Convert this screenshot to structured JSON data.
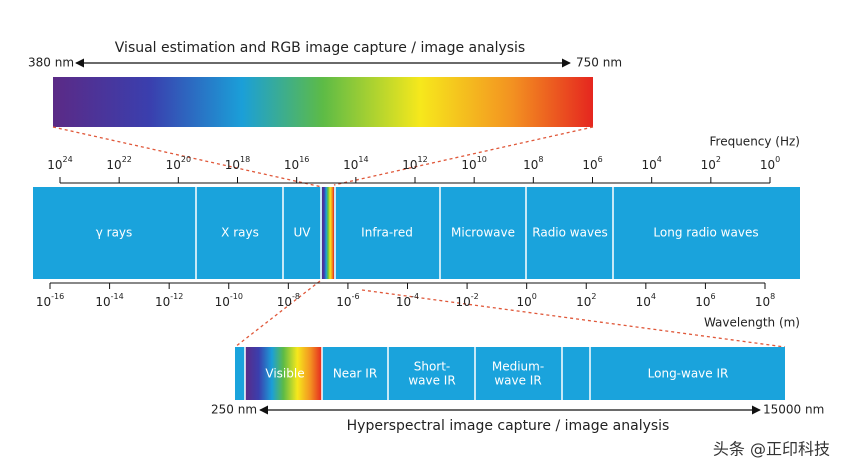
{
  "top": {
    "title": "Visual estimation and RGB image capture / image analysis",
    "start": "380 nm",
    "end": "750 nm"
  },
  "frequency": {
    "label": "Frequency (Hz)",
    "ticks": [
      {
        "base": "10",
        "exponent": "24"
      },
      {
        "base": "10",
        "exponent": "22"
      },
      {
        "base": "10",
        "exponent": "20"
      },
      {
        "base": "10",
        "exponent": "18"
      },
      {
        "base": "10",
        "exponent": "16"
      },
      {
        "base": "10",
        "exponent": "14"
      },
      {
        "base": "10",
        "exponent": "12"
      },
      {
        "base": "10",
        "exponent": "10"
      },
      {
        "base": "10",
        "exponent": "8"
      },
      {
        "base": "10",
        "exponent": "6"
      },
      {
        "base": "10",
        "exponent": "4"
      },
      {
        "base": "10",
        "exponent": "2"
      },
      {
        "base": "10",
        "exponent": "0"
      }
    ]
  },
  "bands": [
    "γ rays",
    "X rays",
    "UV",
    "Infra-red",
    "Microwave",
    "Radio waves",
    "Long radio waves"
  ],
  "wavelength": {
    "label": "Wavelength (m)",
    "ticks": [
      {
        "base": "10",
        "exponent": "-16"
      },
      {
        "base": "10",
        "exponent": "-14"
      },
      {
        "base": "10",
        "exponent": "-12"
      },
      {
        "base": "10",
        "exponent": "-10"
      },
      {
        "base": "10",
        "exponent": "-8"
      },
      {
        "base": "10",
        "exponent": "-6"
      },
      {
        "base": "10",
        "exponent": "-4"
      },
      {
        "base": "10",
        "exponent": "-2"
      },
      {
        "base": "10",
        "exponent": "0"
      },
      {
        "base": "10",
        "exponent": "2"
      },
      {
        "base": "10",
        "exponent": "4"
      },
      {
        "base": "10",
        "exponent": "6"
      },
      {
        "base": "10",
        "exponent": "8"
      }
    ]
  },
  "bottom": {
    "segments": [
      "Visible",
      "Near IR",
      "Short-",
      "wave IR",
      "Medium-",
      "wave IR",
      "Long-wave IR"
    ],
    "start": "250 nm",
    "end": "15000 nm",
    "title": "Hyperspectral image capture / image analysis"
  },
  "watermark": "头条 @正印科技"
}
